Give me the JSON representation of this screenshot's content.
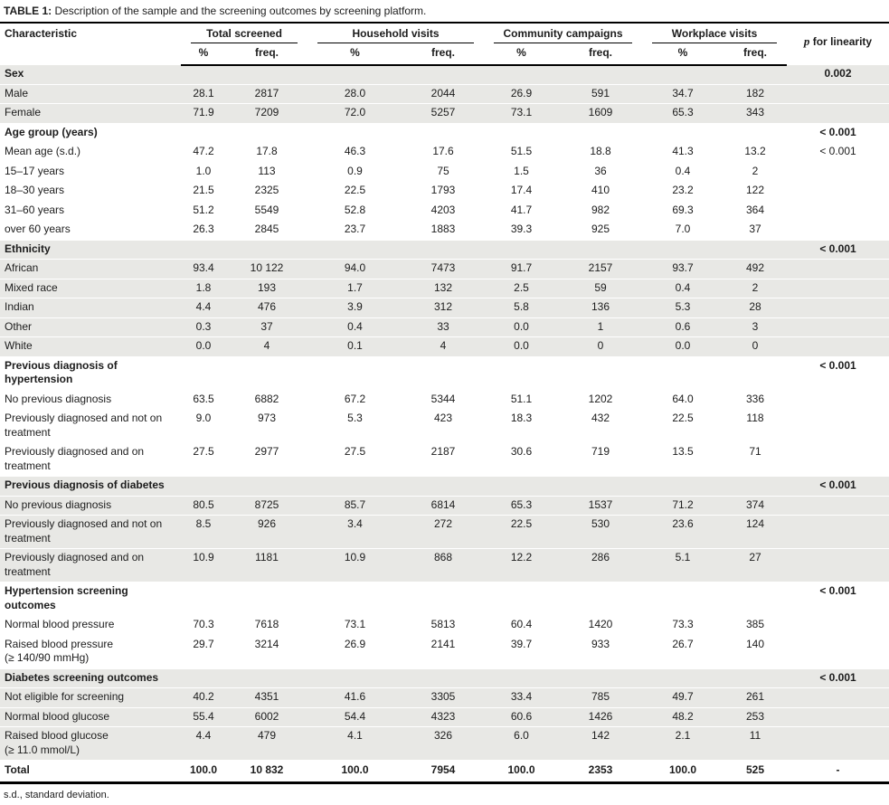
{
  "caption": {
    "label": "TABLE 1:",
    "text": "Description of the sample and the screening outcomes by screening platform."
  },
  "header": {
    "characteristic": "Characteristic",
    "groups": [
      {
        "label": "Total screened"
      },
      {
        "label": "Household visits"
      },
      {
        "label": "Community campaigns"
      },
      {
        "label": "Workplace visits"
      }
    ],
    "sub": {
      "pct": "%",
      "freq": "freq."
    },
    "p_italic": "p",
    "p_rest": "for linearity"
  },
  "table": {
    "rows": [
      {
        "label": "Sex",
        "type": "section",
        "shade": true,
        "values": [],
        "p": "0.002"
      },
      {
        "label": "Male",
        "shade": true,
        "values": [
          "28.1",
          "2817",
          "28.0",
          "2044",
          "26.9",
          "591",
          "34.7",
          "182"
        ],
        "p": ""
      },
      {
        "label": "Female",
        "shade": true,
        "values": [
          "71.9",
          "7209",
          "72.0",
          "5257",
          "73.1",
          "1609",
          "65.3",
          "343"
        ],
        "p": ""
      },
      {
        "label": "Age group (years)",
        "type": "section",
        "shade": false,
        "values": [],
        "p": "< 0.001"
      },
      {
        "label": "Mean age (s.d.)",
        "shade": false,
        "values": [
          "47.2",
          "17.8",
          "46.3",
          "17.6",
          "51.5",
          "18.8",
          "41.3",
          "13.2"
        ],
        "p": "< 0.001"
      },
      {
        "label": "15–17 years",
        "shade": false,
        "values": [
          "1.0",
          "113",
          "0.9",
          "75",
          "1.5",
          "36",
          "0.4",
          "2"
        ],
        "p": ""
      },
      {
        "label": "18–30 years",
        "shade": false,
        "values": [
          "21.5",
          "2325",
          "22.5",
          "1793",
          "17.4",
          "410",
          "23.2",
          "122"
        ],
        "p": ""
      },
      {
        "label": "31–60 years",
        "shade": false,
        "values": [
          "51.2",
          "5549",
          "52.8",
          "4203",
          "41.7",
          "982",
          "69.3",
          "364"
        ],
        "p": ""
      },
      {
        "label": "over 60 years",
        "shade": false,
        "values": [
          "26.3",
          "2845",
          "23.7",
          "1883",
          "39.3",
          "925",
          "7.0",
          "37"
        ],
        "p": ""
      },
      {
        "label": "Ethnicity",
        "type": "section",
        "shade": true,
        "values": [],
        "p": "< 0.001"
      },
      {
        "label": "African",
        "shade": true,
        "values": [
          "93.4",
          "10 122",
          "94.0",
          "7473",
          "91.7",
          "2157",
          "93.7",
          "492"
        ],
        "p": ""
      },
      {
        "label": "Mixed race",
        "shade": true,
        "values": [
          "1.8",
          "193",
          "1.7",
          "132",
          "2.5",
          "59",
          "0.4",
          "2"
        ],
        "p": ""
      },
      {
        "label": "Indian",
        "shade": true,
        "values": [
          "4.4",
          "476",
          "3.9",
          "312",
          "5.8",
          "136",
          "5.3",
          "28"
        ],
        "p": ""
      },
      {
        "label": "Other",
        "shade": true,
        "values": [
          "0.3",
          "37",
          "0.4",
          "33",
          "0.0",
          "1",
          "0.6",
          "3"
        ],
        "p": ""
      },
      {
        "label": "White",
        "shade": true,
        "values": [
          "0.0",
          "4",
          "0.1",
          "4",
          "0.0",
          "0",
          "0.0",
          "0"
        ],
        "p": ""
      },
      {
        "label": "Previous diagnosis of hypertension",
        "type": "section",
        "shade": false,
        "values": [],
        "p": "< 0.001"
      },
      {
        "label": "No previous diagnosis",
        "shade": false,
        "values": [
          "63.5",
          "6882",
          "67.2",
          "5344",
          "51.1",
          "1202",
          "64.0",
          "336"
        ],
        "p": ""
      },
      {
        "label": "Previously diagnosed and not on treatment",
        "shade": false,
        "values": [
          "9.0",
          "973",
          "5.3",
          "423",
          "18.3",
          "432",
          "22.5",
          "118"
        ],
        "p": ""
      },
      {
        "label": "Previously diagnosed and on treatment",
        "shade": false,
        "values": [
          "27.5",
          "2977",
          "27.5",
          "2187",
          "30.6",
          "719",
          "13.5",
          "71"
        ],
        "p": ""
      },
      {
        "label": "Previous diagnosis of diabetes",
        "type": "section",
        "shade": true,
        "values": [],
        "p": "< 0.001"
      },
      {
        "label": "No previous diagnosis",
        "shade": true,
        "values": [
          "80.5",
          "8725",
          "85.7",
          "6814",
          "65.3",
          "1537",
          "71.2",
          "374"
        ],
        "p": ""
      },
      {
        "label": "Previously diagnosed and not on treatment",
        "shade": true,
        "values": [
          "8.5",
          "926",
          "3.4",
          "272",
          "22.5",
          "530",
          "23.6",
          "124"
        ],
        "p": ""
      },
      {
        "label": "Previously diagnosed and on treatment",
        "shade": true,
        "values": [
          "10.9",
          "1181",
          "10.9",
          "868",
          "12.2",
          "286",
          "5.1",
          "27"
        ],
        "p": ""
      },
      {
        "label": "Hypertension screening outcomes",
        "type": "section",
        "shade": false,
        "values": [],
        "p": "< 0.001"
      },
      {
        "label": "Normal blood pressure",
        "shade": false,
        "values": [
          "70.3",
          "7618",
          "73.1",
          "5813",
          "60.4",
          "1420",
          "73.3",
          "385"
        ],
        "p": ""
      },
      {
        "label": "Raised blood pressure",
        "sublabel": "(≥ 140/90 mmHg)",
        "shade": false,
        "values": [
          "29.7",
          "3214",
          "26.9",
          "2141",
          "39.7",
          "933",
          "26.7",
          "140"
        ],
        "p": ""
      },
      {
        "label": "Diabetes screening outcomes",
        "type": "section",
        "shade": true,
        "values": [],
        "p": "< 0.001"
      },
      {
        "label": "Not eligible for screening",
        "shade": true,
        "values": [
          "40.2",
          "4351",
          "41.6",
          "3305",
          "33.4",
          "785",
          "49.7",
          "261"
        ],
        "p": ""
      },
      {
        "label": "Normal blood glucose",
        "shade": true,
        "values": [
          "55.4",
          "6002",
          "54.4",
          "4323",
          "60.6",
          "1426",
          "48.2",
          "253"
        ],
        "p": ""
      },
      {
        "label": "Raised blood glucose",
        "sublabel": "(≥ 11.0 mmol/L)",
        "shade": true,
        "values": [
          "4.4",
          "479",
          "4.1",
          "326",
          "6.0",
          "142",
          "2.1",
          "11"
        ],
        "p": ""
      },
      {
        "label": "Total",
        "type": "total",
        "shade": false,
        "values": [
          "100.0",
          "10 832",
          "100.0",
          "7954",
          "100.0",
          "2353",
          "100.0",
          "525"
        ],
        "p": "-"
      }
    ]
  },
  "footnote": "s.d., standard deviation."
}
